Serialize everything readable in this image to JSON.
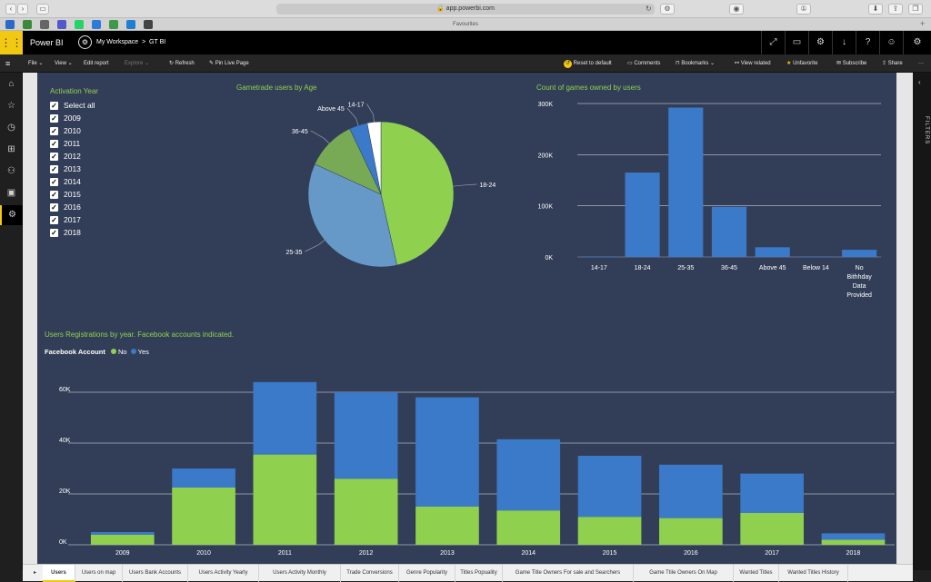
{
  "browser": {
    "url": "app.powerbi.com",
    "favourites_label": "Favourites",
    "fav_icons": [
      {
        "name": "app-1",
        "color": "#2a6bc9"
      },
      {
        "name": "app-2",
        "color": "#3a8a3a"
      },
      {
        "name": "app-3",
        "color": "#666666"
      },
      {
        "name": "teams-icon",
        "color": "#5059c9"
      },
      {
        "name": "whatsapp-icon",
        "color": "#25d366"
      },
      {
        "name": "app-6",
        "color": "#2b7bd8"
      },
      {
        "name": "app-7",
        "color": "#3c9a4a"
      },
      {
        "name": "app-8",
        "color": "#1f7fd1"
      },
      {
        "name": "powerbi-icon",
        "color": "#444444"
      }
    ]
  },
  "header": {
    "app_name": "Power BI",
    "workspace": "My Workspace",
    "separator": ">",
    "report": "GT BI"
  },
  "toolbar": {
    "file": "File",
    "view": "View",
    "edit_report": "Edit report",
    "explore": "Explore",
    "refresh": "Refresh",
    "pin_live": "Pin Live Page",
    "reset": "Reset to default",
    "comments": "Comments",
    "bookmarks": "Bookmarks",
    "view_related": "View related",
    "unfavorite": "Unfavorite",
    "subscribe": "Subscribe",
    "share": "Share",
    "more": "···"
  },
  "filters_label": "FILTERS",
  "slicer": {
    "title": "Activation Year",
    "items": [
      "Select all",
      "2009",
      "2010",
      "2011",
      "2012",
      "2013",
      "2014",
      "2015",
      "2016",
      "2017",
      "2018"
    ]
  },
  "pie": {
    "title": "Gametrade users by Age",
    "labels": [
      "18-24",
      "25-35",
      "36-45",
      "Above 45",
      "14-17"
    ],
    "colors": [
      "#8fd14f",
      "#6699c8",
      "#78aa55",
      "#3b79c9",
      "#ffffff"
    ]
  },
  "bar_owned": {
    "title": "Count of games owned by users",
    "y_ticks": [
      "300K",
      "200K",
      "100K",
      "0K"
    ],
    "categories": [
      "14-17",
      "18-24",
      "25-35",
      "36-45",
      "Above 45",
      "Below 14",
      "No Bithhday Data Provided"
    ],
    "cat_lines": [
      [
        "14-17"
      ],
      [
        "18-24"
      ],
      [
        "25-35"
      ],
      [
        "36-45"
      ],
      [
        "Above 45"
      ],
      [
        "Below 14"
      ],
      [
        "No",
        "Bithhday",
        "Data",
        "Provided"
      ]
    ],
    "color": "#3b79c9"
  },
  "stacked": {
    "title": "Users Registrations by year. Facebook accounts indicated.",
    "legend_title": "Facebook Account",
    "legend": [
      {
        "label": "No",
        "color": "#8fd14f"
      },
      {
        "label": "Yes",
        "color": "#3b79c9"
      }
    ],
    "y_ticks": [
      "60K",
      "40K",
      "20K",
      "0K"
    ]
  },
  "chart_data": [
    {
      "type": "pie",
      "title": "Gametrade users by Age",
      "slices": [
        {
          "label": "18-24",
          "value": 46
        },
        {
          "label": "25-35",
          "value": 35
        },
        {
          "label": "36-45",
          "value": 11
        },
        {
          "label": "Above 45",
          "value": 4
        },
        {
          "label": "14-17",
          "value": 3
        }
      ]
    },
    {
      "type": "bar",
      "title": "Count of games owned by users",
      "categories": [
        "14-17",
        "18-24",
        "25-35",
        "36-45",
        "Above 45",
        "Below 14",
        "No Bithhday Data Provided"
      ],
      "values": [
        1000,
        165000,
        292000,
        98000,
        19000,
        1000,
        14000
      ],
      "ylim": [
        0,
        300000
      ]
    },
    {
      "type": "bar",
      "title": "Users Registrations by year. Facebook accounts indicated.",
      "categories": [
        "2009",
        "2010",
        "2011",
        "2012",
        "2013",
        "2014",
        "2015",
        "2016",
        "2017",
        "2018"
      ],
      "series": [
        {
          "name": "No",
          "values": [
            4000,
            22500,
            35500,
            26000,
            15000,
            13500,
            11000,
            10500,
            12500,
            2000
          ]
        },
        {
          "name": "Yes",
          "values": [
            1000,
            7500,
            28500,
            34000,
            43000,
            28000,
            24000,
            21000,
            15500,
            2500
          ]
        }
      ],
      "ylim": [
        0,
        60000
      ]
    }
  ],
  "tabs": [
    "Users",
    "Users on map",
    "Users Bank Accounts",
    "Users Activity Yearly",
    "Users Activity Monthly",
    "Trade Conversions",
    "Genre Popularity",
    "Titles Popuality",
    "Game Title Owners For sale and Searchers",
    "Game Ttile Owners On Map",
    "Wanted Titles",
    "Wanted Titles History"
  ]
}
